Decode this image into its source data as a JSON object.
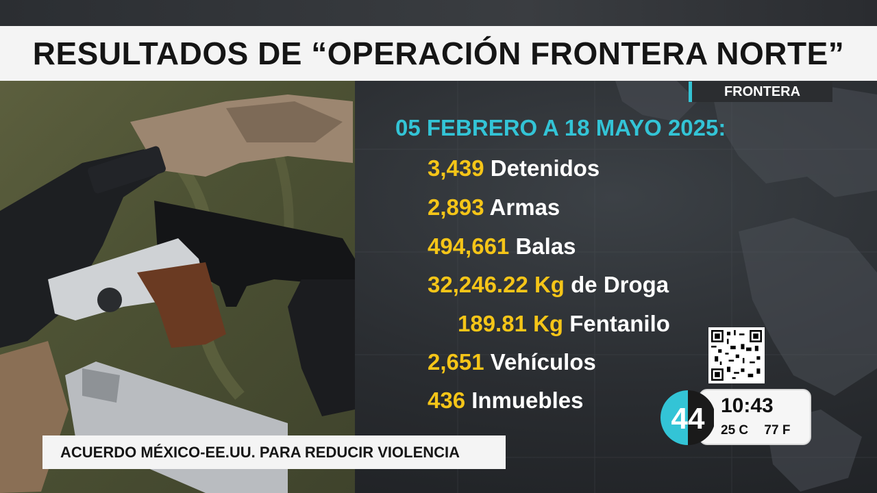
{
  "headline": "RESULTADOS DE “OPERACIÓN FRONTERA NORTE”",
  "section_tag": "FRONTERA",
  "period": "05 FEBRERO A 18 MAYO 2025:",
  "stats": [
    {
      "num": "3,439",
      "label": "Detenidos"
    },
    {
      "num": "2,893",
      "label": "Armas"
    },
    {
      "num": "494,661",
      "label": "Balas"
    },
    {
      "num": "32,246.22 Kg",
      "label": "de Droga"
    },
    {
      "num": "189.81 Kg",
      "label": "Fentanilo"
    },
    {
      "num": "2,651",
      "label": "Vehículos"
    },
    {
      "num": "436",
      "label": "Inmuebles"
    }
  ],
  "lower_third": "ACUERDO MÉXICO-EE.UU. PARA REDUCIR VIOLENCIA",
  "clock": {
    "time": "10:43",
    "temp_c": "25 C",
    "temp_f": "77 F"
  },
  "colors": {
    "accent_cyan": "#33c4d6",
    "number_yellow": "#f5c518",
    "label_white": "#ffffff"
  },
  "icons": {
    "qr": "qr-code-icon",
    "logo": "channel-44-logo"
  }
}
